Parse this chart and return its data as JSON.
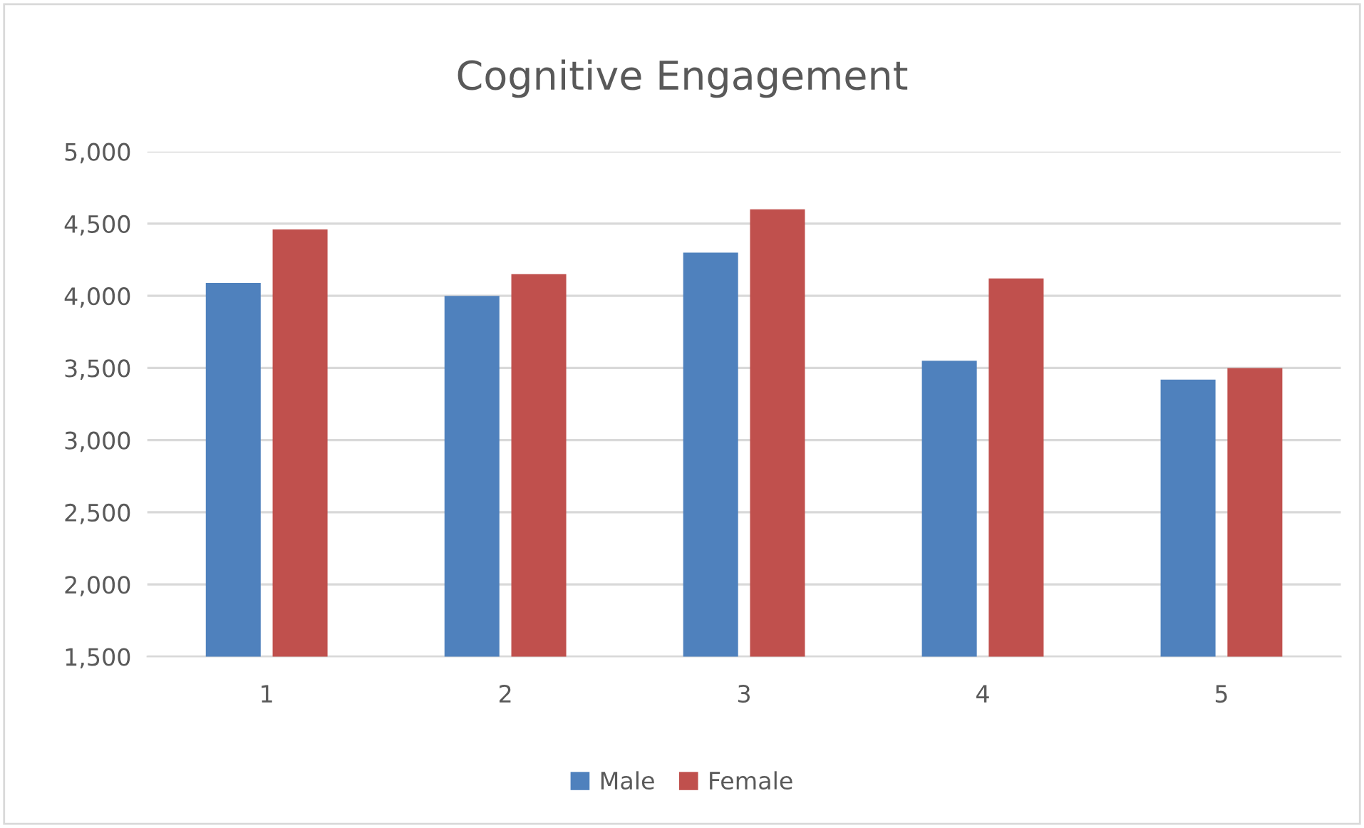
{
  "chart_data": {
    "type": "bar",
    "title": "Cognitive Engagement",
    "categories": [
      "1",
      "2",
      "3",
      "4",
      "5"
    ],
    "series": [
      {
        "name": "Male",
        "color": "#4f81bd",
        "values": [
          4090,
          4000,
          4300,
          3550,
          3420
        ]
      },
      {
        "name": "Female",
        "color": "#c0504d",
        "values": [
          4460,
          4150,
          4600,
          4120,
          3500
        ]
      }
    ],
    "ylim": [
      1500,
      5000
    ],
    "yticks": [
      {
        "value": 1500,
        "label": "1,500"
      },
      {
        "value": 2000,
        "label": "2,000"
      },
      {
        "value": 2500,
        "label": "2,500"
      },
      {
        "value": 3000,
        "label": "3,000"
      },
      {
        "value": 3500,
        "label": "3,500"
      },
      {
        "value": 4000,
        "label": "4,000"
      },
      {
        "value": 4500,
        "label": "4,500"
      },
      {
        "value": 5000,
        "label": "5,000"
      }
    ],
    "grid": "y",
    "legend": "bottom"
  }
}
